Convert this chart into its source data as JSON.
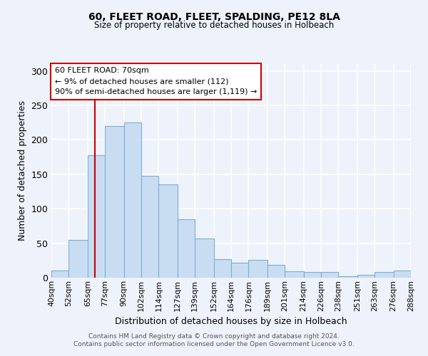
{
  "title": "60, FLEET ROAD, FLEET, SPALDING, PE12 8LA",
  "subtitle": "Size of property relative to detached houses in Holbeach",
  "xlabel": "Distribution of detached houses by size in Holbeach",
  "ylabel": "Number of detached properties",
  "bar_color": "#c9ddf2",
  "bar_edge_color": "#7bafd4",
  "bin_labels": [
    "40sqm",
    "52sqm",
    "65sqm",
    "77sqm",
    "90sqm",
    "102sqm",
    "114sqm",
    "127sqm",
    "139sqm",
    "152sqm",
    "164sqm",
    "176sqm",
    "189sqm",
    "201sqm",
    "214sqm",
    "226sqm",
    "238sqm",
    "251sqm",
    "263sqm",
    "276sqm",
    "288sqm"
  ],
  "bin_edges": [
    40,
    52,
    65,
    77,
    90,
    102,
    114,
    127,
    139,
    152,
    164,
    176,
    189,
    201,
    214,
    226,
    238,
    251,
    263,
    276,
    288
  ],
  "bar_heights": [
    10,
    55,
    178,
    220,
    225,
    148,
    135,
    85,
    57,
    27,
    22,
    26,
    19,
    9,
    8,
    8,
    2,
    4,
    8,
    10
  ],
  "ylim": [
    0,
    310
  ],
  "yticks": [
    0,
    50,
    100,
    150,
    200,
    250,
    300
  ],
  "red_line_x": 70,
  "annotation_title": "60 FLEET ROAD: 70sqm",
  "annotation_line1": "← 9% of detached houses are smaller (112)",
  "annotation_line2": "90% of semi-detached houses are larger (1,119) →",
  "annotation_box_color": "#ffffff",
  "annotation_box_edge": "#cc0000",
  "background_color": "#eef2fa",
  "grid_color": "#ffffff",
  "footer1": "Contains HM Land Registry data © Crown copyright and database right 2024.",
  "footer2": "Contains public sector information licensed under the Open Government Licence v3.0."
}
